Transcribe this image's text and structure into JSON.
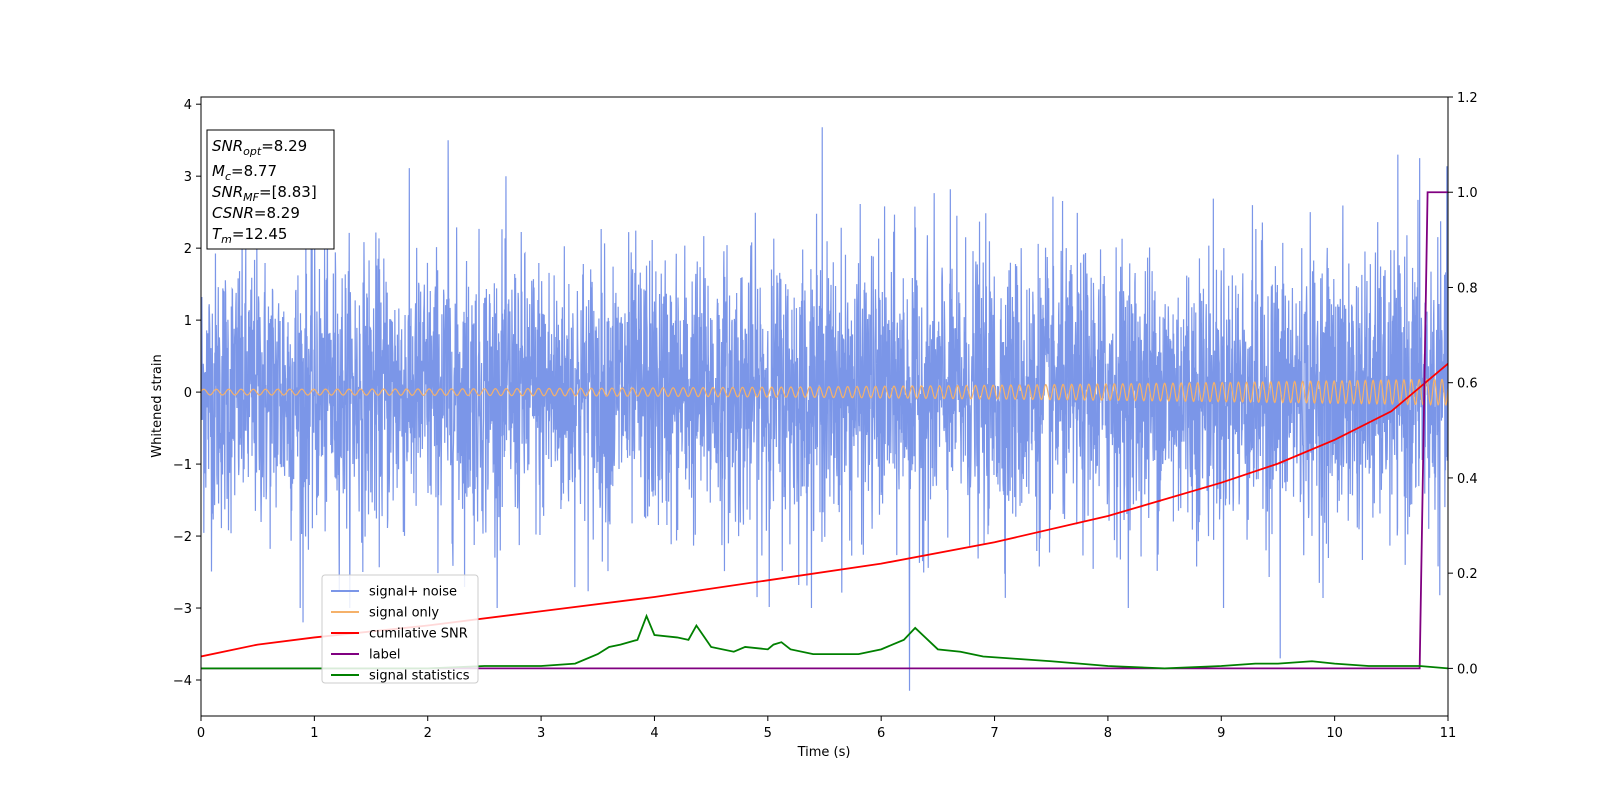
{
  "chart_data": {
    "type": "line",
    "title": "",
    "xlabel": "Time (s)",
    "ylabel": "Whitened strain",
    "xlim": [
      0,
      11
    ],
    "ylim": [
      -4.5,
      4.1
    ],
    "ylim_right": [
      -0.1,
      1.2
    ],
    "x_ticks": [
      "0",
      "1",
      "2",
      "3",
      "4",
      "5",
      "6",
      "7",
      "8",
      "9",
      "10",
      "11"
    ],
    "y_ticks": [
      "4",
      "3",
      "2",
      "1",
      "0",
      "−1",
      "−2",
      "−3",
      "−4"
    ],
    "y_ticks_right": [
      "1.2",
      "1.0",
      "0.8",
      "0.6",
      "0.4",
      "0.2",
      "0.0"
    ],
    "annotation": [
      {
        "sym": "SNR",
        "sub": "opt",
        "val": "=8.29"
      },
      {
        "sym": "M",
        "sub": "c",
        "val": "=8.77"
      },
      {
        "sym": "SNR",
        "sub": "MF",
        "val": "=[8.83]"
      },
      {
        "sym": "CSNR",
        "sub": "",
        "val": "=8.29"
      },
      {
        "sym": "T",
        "sub": "m",
        "val": "=12.45"
      }
    ],
    "legend_position": "lower-left",
    "series": [
      {
        "name": "signal+ noise",
        "axis": "left",
        "color": "#7B96E8",
        "kind": "noise",
        "noise_std": 0.95,
        "notable_spikes": [
          [
            0.9,
            -3.2
          ],
          [
            2.18,
            3.5
          ],
          [
            5.48,
            3.68
          ],
          [
            6.25,
            -4.15
          ],
          [
            9.52,
            -3.7
          ],
          [
            10.75,
            3.25
          ]
        ]
      },
      {
        "name": "signal only",
        "axis": "left",
        "color": "#F5B16A",
        "kind": "chirp",
        "amp_start": 0.04,
        "amp_end": 0.18
      },
      {
        "name": "cumilative SNR",
        "axis": "right",
        "color": "#FF0000",
        "x": [
          0,
          0.5,
          1,
          2,
          3,
          4,
          5,
          6,
          7,
          8,
          9,
          9.5,
          10,
          10.5,
          11
        ],
        "y": [
          0.025,
          0.05,
          0.065,
          0.09,
          0.12,
          0.15,
          0.185,
          0.22,
          0.265,
          0.32,
          0.39,
          0.43,
          0.48,
          0.54,
          0.64
        ]
      },
      {
        "name": "label",
        "axis": "right",
        "color": "#800080",
        "x": [
          0,
          10.75,
          10.82,
          11
        ],
        "y": [
          0,
          0,
          1.0,
          1.0
        ]
      },
      {
        "name": "signal statistics",
        "axis": "right",
        "color": "#008000",
        "x": [
          0,
          0.5,
          1,
          1.5,
          2,
          2.5,
          3,
          3.3,
          3.5,
          3.6,
          3.7,
          3.85,
          3.93,
          4.0,
          4.2,
          4.3,
          4.37,
          4.5,
          4.7,
          4.8,
          5.0,
          5.05,
          5.12,
          5.2,
          5.4,
          5.6,
          5.8,
          6.0,
          6.1,
          6.2,
          6.3,
          6.5,
          6.7,
          6.9,
          7.2,
          7.5,
          8.0,
          8.5,
          9.0,
          9.3,
          9.5,
          9.8,
          10.0,
          10.3,
          10.6,
          10.75,
          11.0
        ],
        "y": [
          0.0,
          0.0,
          0.0,
          0.0,
          0.0,
          0.005,
          0.005,
          0.01,
          0.03,
          0.045,
          0.05,
          0.06,
          0.11,
          0.07,
          0.065,
          0.06,
          0.09,
          0.045,
          0.035,
          0.045,
          0.04,
          0.05,
          0.055,
          0.04,
          0.03,
          0.03,
          0.03,
          0.04,
          0.05,
          0.06,
          0.085,
          0.04,
          0.035,
          0.025,
          0.02,
          0.015,
          0.005,
          0.0,
          0.005,
          0.01,
          0.01,
          0.015,
          0.01,
          0.005,
          0.005,
          0.005,
          0.0
        ]
      }
    ]
  }
}
